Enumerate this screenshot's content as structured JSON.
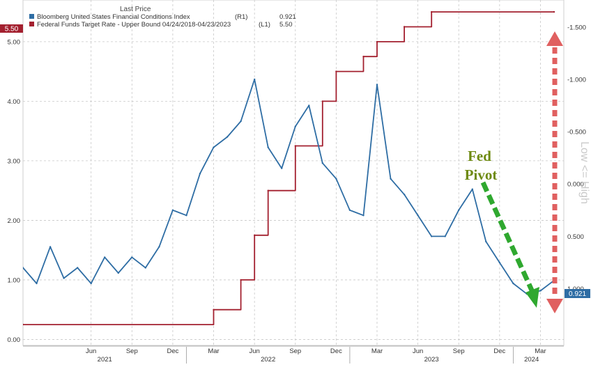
{
  "legend": {
    "header": "Last Price",
    "entries": [
      {
        "label": "Bloomberg United States Financial Conditions Index",
        "axis": "(R1)",
        "value": "0.921",
        "color": "#2e6da4"
      },
      {
        "label": "Federal Funds Target Rate - Upper Bound 04/24/2018-04/23/2023",
        "axis": "(L1)",
        "value": "5.50",
        "color": "#a3202f"
      }
    ]
  },
  "badges": {
    "left": "5.50",
    "right": "0.921"
  },
  "annotation": {
    "line1": "Fed",
    "line2": "Pivot",
    "color": "#6e8a10"
  },
  "right_axis_label": "Low <= High",
  "colors": {
    "fci": "#2e6da4",
    "ffr": "#a3202f",
    "pivot_arrow": "#2fa82f",
    "range_arrow": "#e06060",
    "grid": "#c8c8c8"
  },
  "chart_data": {
    "type": "line",
    "x_range": [
      "2021-01",
      "2024-04"
    ],
    "left_axis": {
      "ticks": [
        "0.00",
        "1.00",
        "2.00",
        "3.00",
        "4.00",
        "5.00"
      ],
      "ylim": [
        -0.1,
        5.7
      ]
    },
    "right_axis": {
      "ticks": [
        "1.000",
        "0.500",
        "0.000",
        "-0.500",
        "-1.000",
        "-1.500"
      ],
      "inverted": true,
      "ylim": [
        1.542,
        -1.758
      ]
    },
    "x_month_ticks": [
      "Jun",
      "Sep",
      "Dec",
      "Mar",
      "Jun",
      "Sep",
      "Dec",
      "Mar",
      "Jun",
      "Sep",
      "Dec",
      "Mar"
    ],
    "x_year_labels": [
      "2021",
      "2022",
      "2023",
      "2024"
    ],
    "series": [
      {
        "name": "Federal Funds Target Rate - Upper Bound",
        "axis": "left",
        "step": true,
        "points": [
          [
            "2021-01",
            0.25
          ],
          [
            "2022-03",
            0.5
          ],
          [
            "2022-05",
            1.0
          ],
          [
            "2022-06",
            1.75
          ],
          [
            "2022-07",
            2.5
          ],
          [
            "2022-09",
            3.25
          ],
          [
            "2022-11",
            4.0
          ],
          [
            "2022-12",
            4.5
          ],
          [
            "2023-02",
            4.75
          ],
          [
            "2023-03",
            5.0
          ],
          [
            "2023-05",
            5.25
          ],
          [
            "2023-07",
            5.5
          ],
          [
            "2024-04",
            5.5
          ]
        ]
      },
      {
        "name": "Bloomberg United States Financial Conditions Index",
        "axis": "right",
        "points": [
          [
            "2021-01",
            0.8
          ],
          [
            "2021-02",
            0.95
          ],
          [
            "2021-03",
            0.6
          ],
          [
            "2021-04",
            0.9
          ],
          [
            "2021-05",
            0.8
          ],
          [
            "2021-06",
            0.95
          ],
          [
            "2021-07",
            0.7
          ],
          [
            "2021-08",
            0.85
          ],
          [
            "2021-09",
            0.7
          ],
          [
            "2021-10",
            0.8
          ],
          [
            "2021-11",
            0.6
          ],
          [
            "2021-12",
            0.25
          ],
          [
            "2022-01",
            0.3
          ],
          [
            "2022-02",
            -0.1
          ],
          [
            "2022-03",
            -0.35
          ],
          [
            "2022-04",
            -0.45
          ],
          [
            "2022-05",
            -0.6
          ],
          [
            "2022-06",
            -1.0
          ],
          [
            "2022-07",
            -0.35
          ],
          [
            "2022-08",
            -0.15
          ],
          [
            "2022-09",
            -0.55
          ],
          [
            "2022-10",
            -0.75
          ],
          [
            "2022-11",
            -0.2
          ],
          [
            "2022-12",
            -0.05
          ],
          [
            "2023-01",
            0.25
          ],
          [
            "2023-02",
            0.3
          ],
          [
            "2023-03",
            -0.95
          ],
          [
            "2023-04",
            -0.05
          ],
          [
            "2023-05",
            0.1
          ],
          [
            "2023-06",
            0.3
          ],
          [
            "2023-07",
            0.5
          ],
          [
            "2023-08",
            0.5
          ],
          [
            "2023-09",
            0.25
          ],
          [
            "2023-10",
            0.05
          ],
          [
            "2023-11",
            0.55
          ],
          [
            "2023-12",
            0.75
          ],
          [
            "2024-01",
            0.95
          ],
          [
            "2024-02",
            1.05
          ],
          [
            "2024-03",
            1.02
          ],
          [
            "2024-04",
            0.921
          ]
        ]
      }
    ]
  }
}
